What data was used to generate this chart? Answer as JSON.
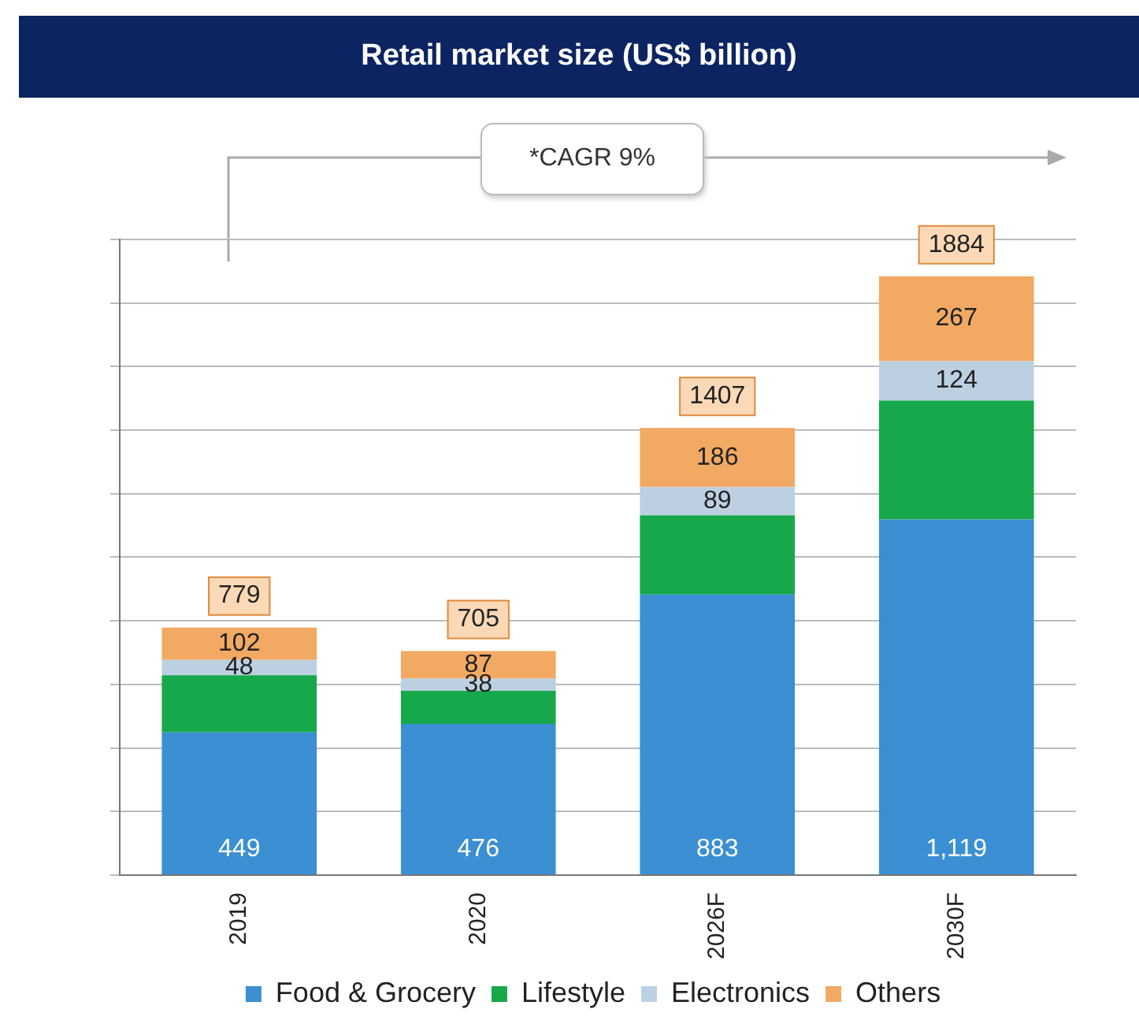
{
  "chart_data": {
    "type": "bar",
    "title": "Retail market size (US$ billion)",
    "categories": [
      "2019",
      "2020",
      "2026F",
      "2030F"
    ],
    "stacked": true,
    "series": [
      {
        "name": "Food & Grocery",
        "color": "#3b8fd2",
        "values": [
          449,
          476,
          883,
          1119
        ],
        "value_labels": [
          "449",
          "476",
          "883",
          "1,119"
        ]
      },
      {
        "name": "Lifestyle",
        "color": "#17a84b",
        "values": [
          180,
          104,
          249,
          374
        ],
        "value_labels": [
          null,
          null,
          null,
          null
        ]
      },
      {
        "name": "Electronics",
        "color": "#bcd0e2",
        "values": [
          48,
          38,
          89,
          124
        ],
        "value_labels": [
          "48",
          "38",
          "89",
          "124"
        ]
      },
      {
        "name": "Others",
        "color": "#f2a963",
        "values": [
          102,
          87,
          186,
          267
        ],
        "value_labels": [
          "102",
          "87",
          "186",
          "267"
        ]
      }
    ],
    "totals": [
      "779",
      "705",
      "1407",
      "1884"
    ],
    "annotations": [
      "*CAGR 9%"
    ],
    "grid": "y",
    "tick_labels": "x",
    "legend": "bottom"
  }
}
